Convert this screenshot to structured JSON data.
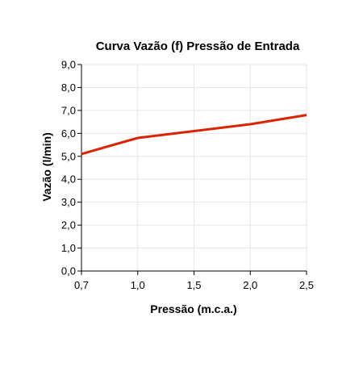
{
  "chart_data": {
    "type": "line",
    "title": "Curva Vazão (f) Pressão de Entrada",
    "xlabel": "Pressão (m.c.a.)",
    "ylabel": "Vazão (l/min)",
    "x_ticks": [
      {
        "value": 0.7,
        "label": "0,7"
      },
      {
        "value": 1.0,
        "label": "1,0"
      },
      {
        "value": 1.5,
        "label": "1,5"
      },
      {
        "value": 2.0,
        "label": "2,0"
      },
      {
        "value": 2.5,
        "label": "2,5"
      }
    ],
    "y_ticks": [
      {
        "value": 0,
        "label": "0,0"
      },
      {
        "value": 1,
        "label": "1,0"
      },
      {
        "value": 2,
        "label": "2,0"
      },
      {
        "value": 3,
        "label": "3,0"
      },
      {
        "value": 4,
        "label": "4,0"
      },
      {
        "value": 5,
        "label": "5,0"
      },
      {
        "value": 6,
        "label": "6,0"
      },
      {
        "value": 7,
        "label": "7,0"
      },
      {
        "value": 8,
        "label": "8,0"
      },
      {
        "value": 9,
        "label": "9,0"
      }
    ],
    "xlim": [
      0.7,
      2.5
    ],
    "ylim": [
      0,
      9
    ],
    "x_scale": "nonuniform-categorical",
    "grid": true,
    "legend": "none",
    "series": [
      {
        "color": "#dd2200",
        "points": [
          {
            "x": 0.7,
            "y": 5.1
          },
          {
            "x": 1.0,
            "y": 5.8
          },
          {
            "x": 1.5,
            "y": 6.1
          },
          {
            "x": 2.0,
            "y": 6.4
          },
          {
            "x": 2.5,
            "y": 6.8
          }
        ]
      }
    ],
    "colors": {
      "grid": "#e6e6e6",
      "axis": "#000000",
      "line": "#dd2200"
    }
  }
}
